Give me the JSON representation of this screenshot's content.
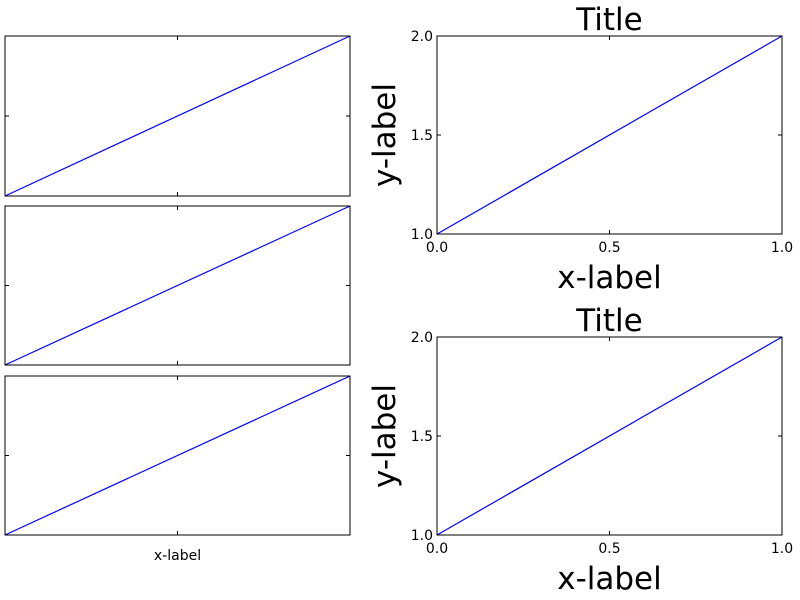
{
  "line_color": "#0000ff",
  "chart_data": [
    {
      "type": "line",
      "x": [
        0,
        1
      ],
      "y": [
        1,
        2
      ],
      "xlim": [
        0,
        1
      ],
      "ylim": [
        1,
        2
      ],
      "xticks": [
        0.5
      ],
      "yticks": [
        1.5
      ],
      "xtick_labels": [],
      "ytick_labels": [],
      "title": "",
      "xlabel": "",
      "ylabel": ""
    },
    {
      "type": "line",
      "x": [
        0,
        1
      ],
      "y": [
        1,
        2
      ],
      "xlim": [
        0,
        1
      ],
      "ylim": [
        1,
        2
      ],
      "xticks": [
        0.5
      ],
      "yticks": [
        1.5
      ],
      "xtick_labels": [],
      "ytick_labels": [],
      "title": "",
      "xlabel": "",
      "ylabel": ""
    },
    {
      "type": "line",
      "x": [
        0,
        1
      ],
      "y": [
        1,
        2
      ],
      "xlim": [
        0,
        1
      ],
      "ylim": [
        1,
        2
      ],
      "xticks": [
        0.5
      ],
      "yticks": [
        1.5
      ],
      "xtick_labels": [],
      "ytick_labels": [],
      "title": "",
      "xlabel": "x-label",
      "ylabel": ""
    },
    {
      "type": "line",
      "x": [
        0,
        1
      ],
      "y": [
        1,
        2
      ],
      "xlim": [
        0,
        1
      ],
      "ylim": [
        1,
        2
      ],
      "xticks": [
        0,
        0.5,
        1
      ],
      "yticks": [
        1,
        1.5,
        2
      ],
      "xtick_labels": [
        "0.0",
        "0.5",
        "1.0"
      ],
      "ytick_labels": [
        "1.0",
        "1.5",
        "2.0"
      ],
      "title": "Title",
      "xlabel": "x-label",
      "ylabel": "y-label"
    },
    {
      "type": "line",
      "x": [
        0,
        1
      ],
      "y": [
        1,
        2
      ],
      "xlim": [
        0,
        1
      ],
      "ylim": [
        1,
        2
      ],
      "xticks": [
        0,
        0.5,
        1
      ],
      "yticks": [
        1,
        1.5,
        2
      ],
      "xtick_labels": [
        "0.0",
        "0.5",
        "1.0"
      ],
      "ytick_labels": [
        "1.0",
        "1.5",
        "2.0"
      ],
      "title": "Title",
      "xlabel": "x-label",
      "ylabel": "y-label"
    }
  ]
}
